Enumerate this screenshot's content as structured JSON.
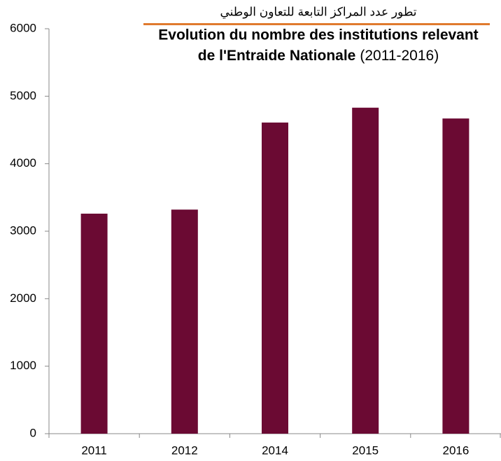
{
  "chart_data": {
    "type": "bar",
    "title_ar": "تطور عدد  المراكز التابعة للتعاون الوطني",
    "title": [
      "Evolution du nombre des institutions relevant",
      "de  l'Entraide Nationale"
    ],
    "subtitle": "(2011-2016)",
    "categories": [
      "2011",
      "2012",
      "2014",
      "2015",
      "2016"
    ],
    "values": [
      3260,
      3320,
      4610,
      4830,
      4670
    ],
    "color": "#6b0a33",
    "ylim": [
      0,
      6000
    ],
    "yticks": [
      0,
      1000,
      2000,
      3000,
      4000,
      5000,
      6000
    ],
    "grid": false
  }
}
